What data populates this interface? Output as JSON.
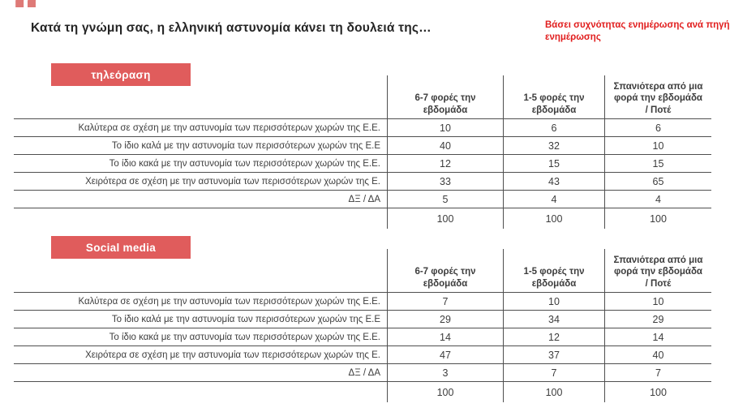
{
  "icons": {
    "quote": "“"
  },
  "title": "Κατά τη γνώμη σας, η ελληνική αστυνομία κάνει τη δουλειά της…",
  "note": "Βάσει συχνότητας ενημέρωσης ανά πηγή ενημέρωσης",
  "colors": {
    "section_accent": "#e05c5c",
    "note_red": "#e11d1d",
    "table_border": "#4f4f4f",
    "table_text": "#3d3d3d"
  },
  "column_headers": [
    "6-7 φορές την εβδομάδα",
    "1-5 φορές την εβδομάδα",
    "Σπανιότερα από μια φορά την εβδομάδα / Ποτέ"
  ],
  "row_labels": [
    "Καλύτερα σε σχέση με την αστυνομία των περισσότερων χωρών της Ε.Ε.",
    "Το ίδιο καλά με την αστυνομία των περισσότερων χωρών της Ε.Ε",
    "Το ίδιο κακά με την αστυνομία των περισσότερων χωρών της Ε.Ε.",
    "Χειρότερα σε σχέση με την αστυνομία των περισσότερων χωρών της Ε.",
    "ΔΞ / ΔΑ"
  ],
  "tables": [
    {
      "label": "τηλεόραση",
      "rows": [
        [
          10,
          6,
          6
        ],
        [
          40,
          32,
          10
        ],
        [
          12,
          15,
          15
        ],
        [
          33,
          43,
          65
        ],
        [
          5,
          4,
          4
        ]
      ],
      "totals": [
        100,
        100,
        100
      ]
    },
    {
      "label": "Social media",
      "rows": [
        [
          7,
          10,
          10
        ],
        [
          29,
          34,
          29
        ],
        [
          14,
          12,
          14
        ],
        [
          47,
          37,
          40
        ],
        [
          3,
          7,
          7
        ]
      ],
      "totals": [
        100,
        100,
        100
      ]
    }
  ]
}
